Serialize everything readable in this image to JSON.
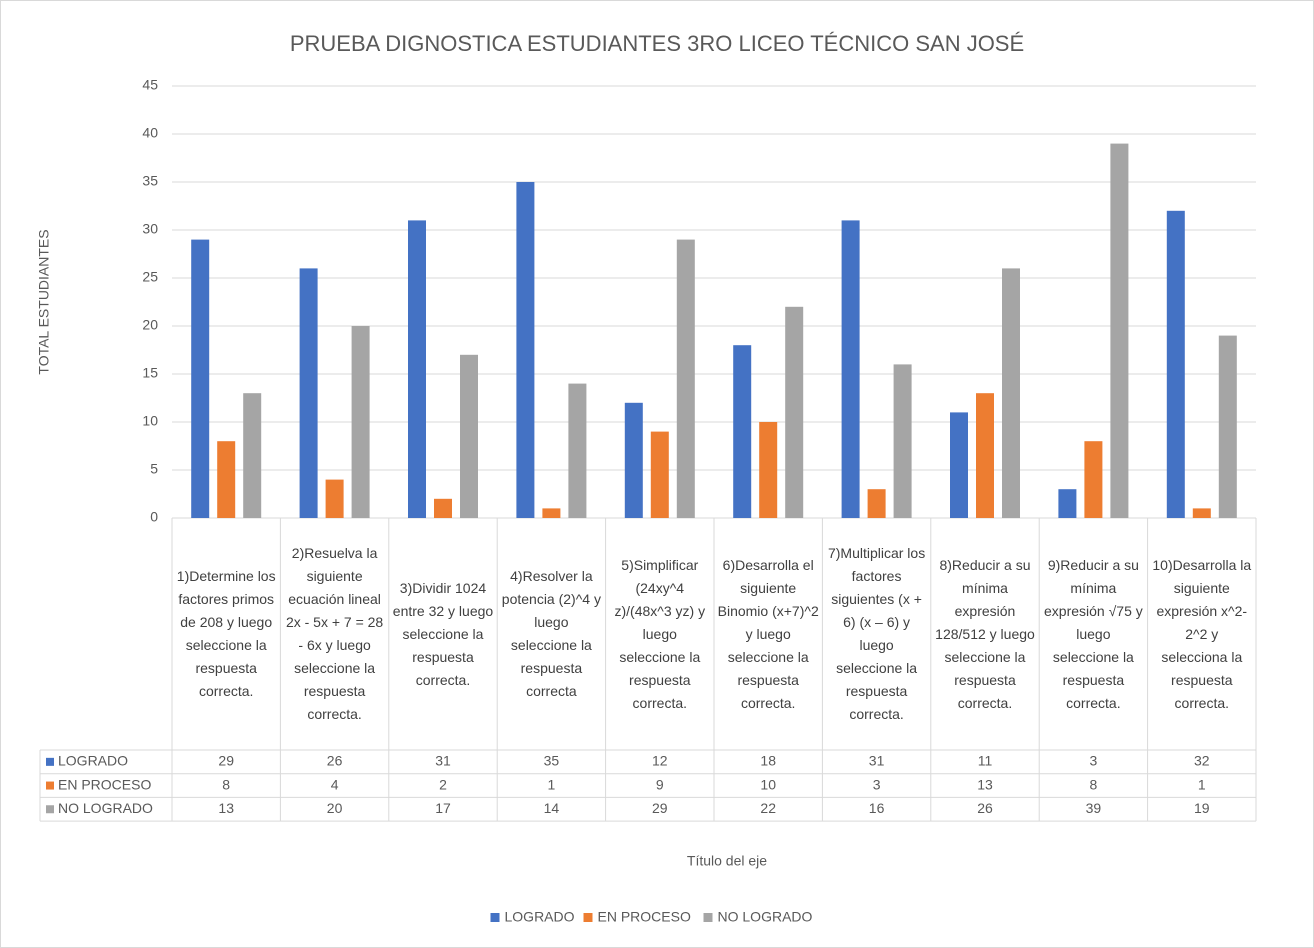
{
  "chart_data": {
    "type": "bar",
    "title": "PRUEBA DIGNOSTICA ESTUDIANTES 3RO LICEO TÉCNICO SAN JOSÉ",
    "ylabel": "TOTAL ESTUDIANTES",
    "xlabel": "Título del eje",
    "categories": [
      "1)Determine los factores primos de 208 y luego seleccione la respuesta correcta.",
      "2)Resuelva la siguiente ecuación lineal 2x - 5x + 7 = 28 - 6x y luego seleccione la respuesta correcta.",
      "3)Dividir 1024 entre 32 y luego seleccione la respuesta correcta.",
      "4)Resolver la potencia (2)^4 y luego seleccione la respuesta correcta",
      "5)Simplificar (24xy^4 z)/(48x^3 yz) y luego seleccione la respuesta correcta.",
      "6)Desarrolla el siguiente Binomio (x+7)^2 y luego seleccione la respuesta correcta.",
      "7)Multiplicar los factores siguientes (x + 6) (x – 6) y luego seleccione la respuesta correcta.",
      "8)Reducir a su mínima expresión 128/512 y luego seleccione la respuesta correcta.",
      "9)Reducir a su mínima expresión √75 y luego seleccione la respuesta correcta.",
      "10)Desarrolla la siguiente expresión x^2-2^2 y selecciona la respuesta correcta."
    ],
    "series": [
      {
        "name": "LOGRADO",
        "color": "#4472c4",
        "values": [
          29,
          26,
          31,
          35,
          12,
          18,
          31,
          11,
          3,
          32
        ]
      },
      {
        "name": "EN PROCESO",
        "color": "#ed7d31",
        "values": [
          8,
          4,
          2,
          1,
          9,
          10,
          3,
          13,
          8,
          1
        ]
      },
      {
        "name": "NO LOGRADO",
        "color": "#a5a5a5",
        "values": [
          13,
          20,
          17,
          14,
          29,
          22,
          16,
          26,
          39,
          19
        ]
      }
    ],
    "ylim": [
      0,
      45
    ],
    "yticks": [
      0,
      5,
      10,
      15,
      20,
      25,
      30,
      35,
      40,
      45
    ],
    "grid": true,
    "legend": "bottom"
  }
}
